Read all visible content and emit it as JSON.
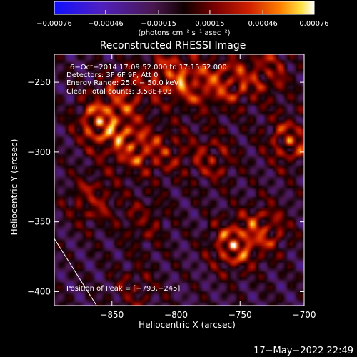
{
  "chart_data": {
    "type": "heatmap",
    "title": "Reconstructed RHESSI Image",
    "xlabel": "Heliocentric X (arcsec)",
    "ylabel": "Heliocentric Y (arcsec)",
    "xlim": [
      -895,
      -700
    ],
    "ylim": [
      -410,
      -230
    ],
    "xticks": [
      -850,
      -800,
      -750,
      -700
    ],
    "xtick_labels": [
      "−850",
      "−800",
      "−750",
      "−700"
    ],
    "yticks": [
      -400,
      -350,
      -300,
      -250
    ],
    "ytick_labels": [
      "−400",
      "−350",
      "−300",
      "−250"
    ],
    "colorbar": {
      "min": -0.00076,
      "max": 0.00076,
      "ticks": [
        -0.00076,
        -0.00046,
        -0.00015,
        0.00015,
        0.00046,
        0.00076
      ],
      "tick_labels": [
        "−0.00076",
        "−0.00046",
        "−0.00015",
        "0.00015",
        "0.00046",
        "0.00076"
      ],
      "units": "(photons cm⁻² s⁻¹ asec⁻²)"
    },
    "annotations": [
      "6−Oct−2014 17:09:52.000 to 17:15:52.000",
      "Detectors: 3F 6F 9F, Att 0",
      "Energy Range: 25.0 − 50.0 keV",
      "Clean    Total counts: 3.58E+03"
    ],
    "peak_label": "Position of Peak = [−793,−245]",
    "peak": [
      -793,
      -245
    ],
    "limb_line": [
      [
        -895,
        -362
      ],
      [
        -862,
        -410
      ]
    ],
    "peaks": [
      {
        "x": -860,
        "y": -279,
        "v": 0.00076
      },
      {
        "x": -840,
        "y": -258,
        "v": 0.0005
      },
      {
        "x": -806,
        "y": -245,
        "v": 0.0006
      },
      {
        "x": -785,
        "y": -252,
        "v": 0.00052
      },
      {
        "x": -758,
        "y": -250,
        "v": 0.00058
      },
      {
        "x": -728,
        "y": -243,
        "v": 0.0005
      },
      {
        "x": -835,
        "y": -296,
        "v": 0.00066
      },
      {
        "x": -808,
        "y": -300,
        "v": 0.0004
      },
      {
        "x": -772,
        "y": -305,
        "v": 0.00046
      },
      {
        "x": -712,
        "y": -292,
        "v": 0.0006
      },
      {
        "x": -730,
        "y": -355,
        "v": 0.00054
      },
      {
        "x": -755,
        "y": -367,
        "v": 0.00074
      },
      {
        "x": -866,
        "y": -335,
        "v": 0.0005
      },
      {
        "x": -825,
        "y": -350,
        "v": 0.00036
      },
      {
        "x": -832,
        "y": -398,
        "v": 0.0003
      }
    ]
  },
  "footer": {
    "timestamp": "17−May−2022 22:49"
  }
}
